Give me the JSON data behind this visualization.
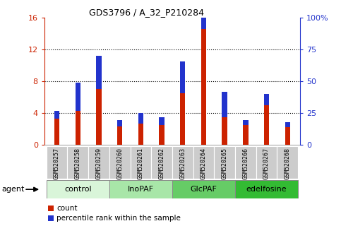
{
  "title": "GDS3796 / A_32_P210284",
  "samples": [
    "GSM520257",
    "GSM520258",
    "GSM520259",
    "GSM520260",
    "GSM520261",
    "GSM520262",
    "GSM520263",
    "GSM520264",
    "GSM520265",
    "GSM520266",
    "GSM520267",
    "GSM520268"
  ],
  "count_values": [
    3.3,
    4.3,
    7.0,
    2.3,
    2.7,
    2.5,
    6.5,
    14.6,
    3.5,
    2.5,
    5.0,
    2.2
  ],
  "percentile_values": [
    6,
    22,
    26,
    5,
    8,
    6,
    25,
    35,
    20,
    4,
    9,
    4
  ],
  "groups": [
    {
      "label": "control",
      "start": 0,
      "end": 2,
      "color": "#d9f5d9"
    },
    {
      "label": "InoPAF",
      "start": 3,
      "end": 5,
      "color": "#a8e6a8"
    },
    {
      "label": "GlcPAF",
      "start": 6,
      "end": 8,
      "color": "#66cc66"
    },
    {
      "label": "edelfosine",
      "start": 9,
      "end": 11,
      "color": "#33bb33"
    }
  ],
  "ylim_left": [
    0,
    16
  ],
  "ylim_right": [
    0,
    100
  ],
  "yticks_left": [
    0,
    4,
    8,
    12,
    16
  ],
  "yticks_right": [
    0,
    25,
    50,
    75,
    100
  ],
  "yticklabels_right": [
    "0",
    "25",
    "50",
    "75",
    "100%"
  ],
  "bar_color_count": "#cc2200",
  "bar_color_pct": "#2233cc",
  "bar_width": 0.25,
  "legend_count_label": "count",
  "legend_pct_label": "percentile rank within the sample",
  "agent_label": "agent"
}
